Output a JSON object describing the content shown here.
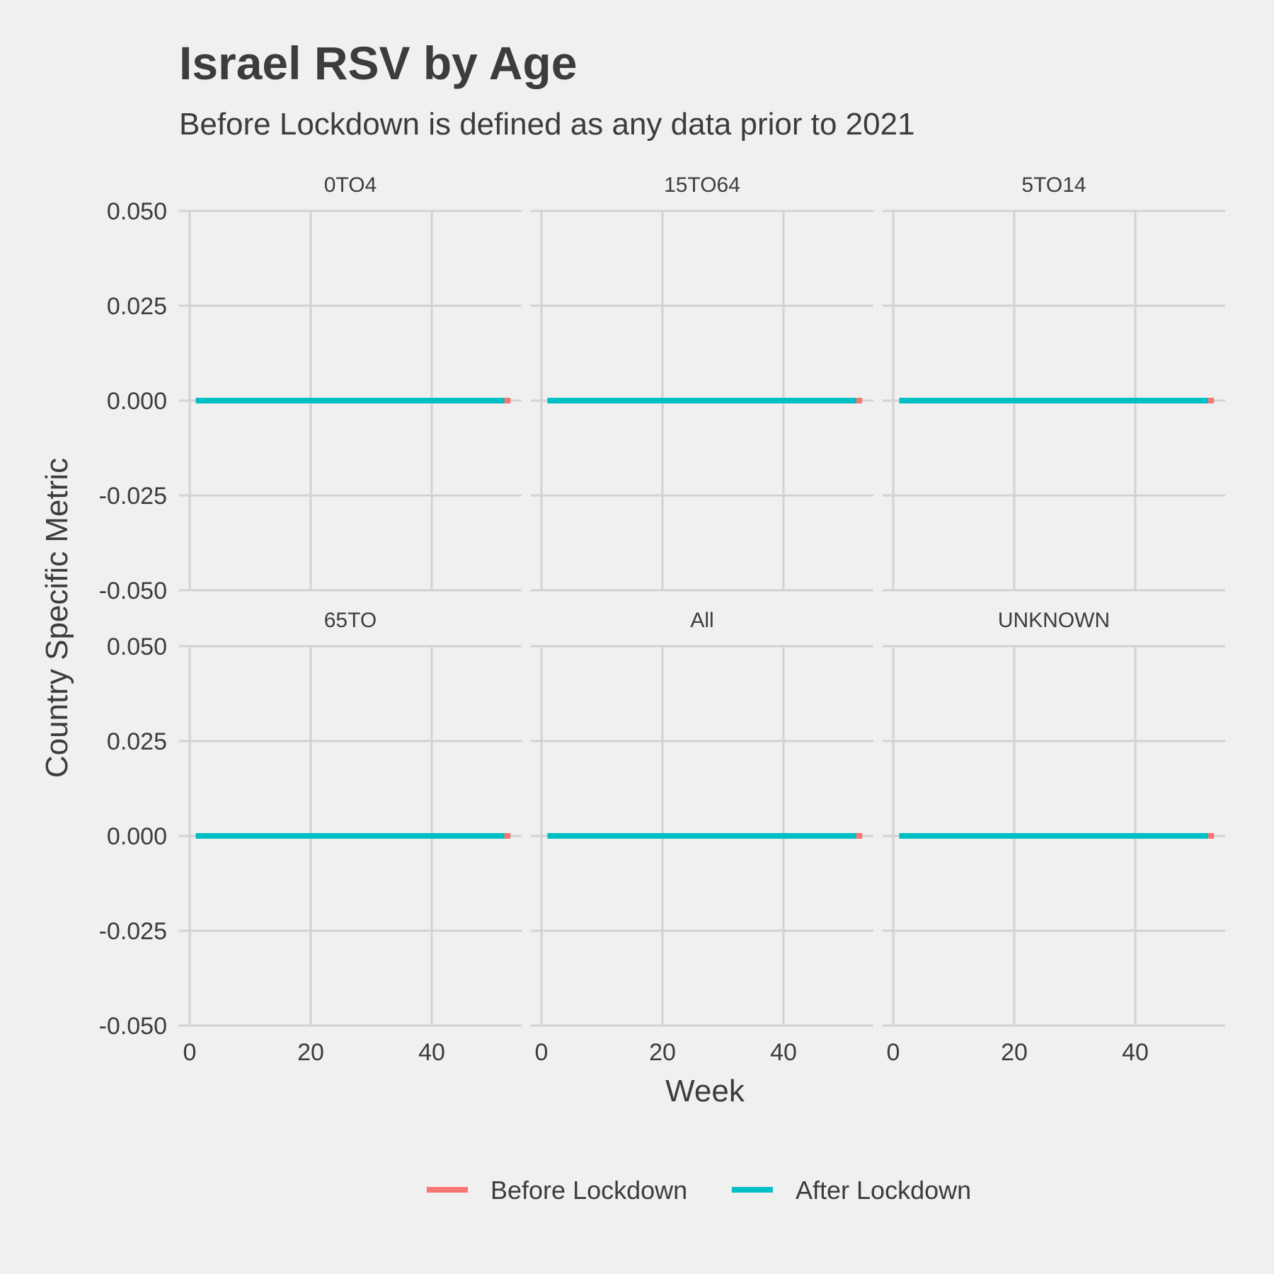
{
  "colors": {
    "background": "#f0f0f0",
    "grid": "#d2d2d2",
    "text": "#3c3c3c",
    "before": "#f8766d",
    "after": "#00bfc4"
  },
  "chart_data": {
    "type": "line",
    "title": "Israel RSV by Age",
    "subtitle": "Before Lockdown is defined as any data prior to 2021",
    "xlabel": "Week",
    "ylabel": "Country Specific Metric",
    "xlim": [
      0,
      53
    ],
    "ylim": [
      -0.05,
      0.05
    ],
    "xticks": [
      0,
      20,
      40
    ],
    "yticks": [
      0.05,
      0.025,
      0,
      -0.025,
      -0.05
    ],
    "ytick_labels": [
      "0.050",
      "0.025",
      "0.000",
      "-0.025",
      "-0.050"
    ],
    "grid": true,
    "legend_position": "bottom",
    "legend": [
      {
        "name": "Before Lockdown",
        "color": "#f8766d"
      },
      {
        "name": "After Lockdown",
        "color": "#00bfc4"
      }
    ],
    "facets": [
      {
        "label": "0TO4",
        "series": [
          {
            "name": "Before Lockdown",
            "x": [
              1,
              53
            ],
            "y": [
              0,
              0
            ]
          },
          {
            "name": "After Lockdown",
            "x": [
              1,
              52
            ],
            "y": [
              0,
              0
            ]
          }
        ]
      },
      {
        "label": "15TO64",
        "series": [
          {
            "name": "Before Lockdown",
            "x": [
              1,
              53
            ],
            "y": [
              0,
              0
            ]
          },
          {
            "name": "After Lockdown",
            "x": [
              1,
              52
            ],
            "y": [
              0,
              0
            ]
          }
        ]
      },
      {
        "label": "5TO14",
        "series": [
          {
            "name": "Before Lockdown",
            "x": [
              1,
              53
            ],
            "y": [
              0,
              0
            ]
          },
          {
            "name": "After Lockdown",
            "x": [
              1,
              52
            ],
            "y": [
              0,
              0
            ]
          }
        ]
      },
      {
        "label": "65TO",
        "series": [
          {
            "name": "Before Lockdown",
            "x": [
              1,
              53
            ],
            "y": [
              0,
              0
            ]
          },
          {
            "name": "After Lockdown",
            "x": [
              1,
              52
            ],
            "y": [
              0,
              0
            ]
          }
        ]
      },
      {
        "label": "All",
        "series": [
          {
            "name": "Before Lockdown",
            "x": [
              1,
              53
            ],
            "y": [
              0,
              0
            ]
          },
          {
            "name": "After Lockdown",
            "x": [
              1,
              52
            ],
            "y": [
              0,
              0
            ]
          }
        ]
      },
      {
        "label": "UNKNOWN",
        "series": [
          {
            "name": "Before Lockdown",
            "x": [
              1,
              53
            ],
            "y": [
              0,
              0
            ]
          },
          {
            "name": "After Lockdown",
            "x": [
              1,
              52
            ],
            "y": [
              0,
              0
            ]
          }
        ]
      }
    ]
  }
}
